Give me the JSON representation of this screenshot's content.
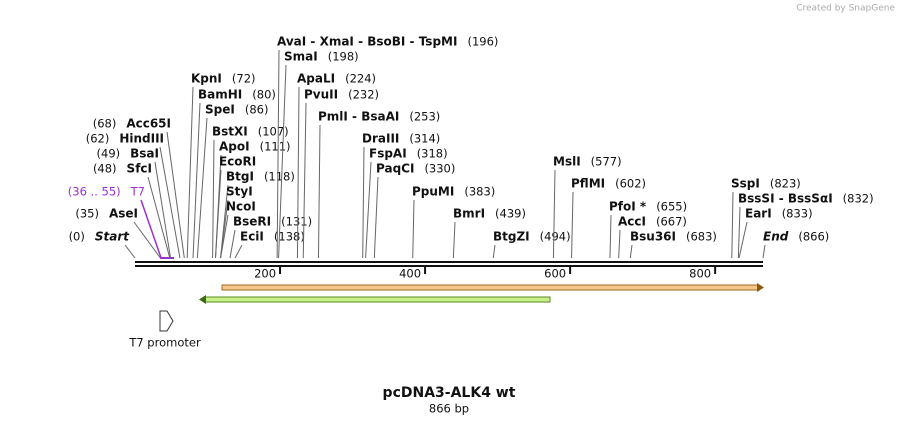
{
  "header": {
    "credit": "Created by SnapGene"
  },
  "map": {
    "title": "pcDNA3-ALK4 wt",
    "length_label": "866 bp",
    "xlim": [
      0,
      866
    ],
    "ticks": [
      200,
      400,
      600,
      800
    ],
    "features": [
      {
        "name": "T7 promoter"
      }
    ],
    "sites": [
      {
        "name": "Start",
        "pos": 0,
        "pos_label": "(0)"
      },
      {
        "name": "AseI",
        "pos": 35,
        "pos_label": "(35)"
      },
      {
        "name": "T7",
        "pos": 36,
        "pos_label": "(36 .. 55)"
      },
      {
        "name": "SfcI",
        "pos": 48,
        "pos_label": "(48)"
      },
      {
        "name": "BsaI",
        "pos": 49,
        "pos_label": "(49)"
      },
      {
        "name": "HindIII",
        "pos": 62,
        "pos_label": "(62)"
      },
      {
        "name": "Acc65I",
        "pos": 68,
        "pos_label": "(68)"
      },
      {
        "name": "KpnI",
        "pos": 72,
        "pos_label": "(72)"
      },
      {
        "name": "BamHI",
        "pos": 80,
        "pos_label": "(80)"
      },
      {
        "name": "SpeI",
        "pos": 86,
        "pos_label": "(86)"
      },
      {
        "name": "BstXI",
        "pos": 107,
        "pos_label": "(107)"
      },
      {
        "name": "ApoI",
        "pos": 111,
        "pos_label": "(111)"
      },
      {
        "name": "EcoRI",
        "pos": 111
      },
      {
        "name": "BtgI",
        "pos": 118,
        "pos_label": "(118)"
      },
      {
        "name": "StyI",
        "pos": 118
      },
      {
        "name": "NcoI",
        "pos": 118
      },
      {
        "name": "BseRI",
        "pos": 131,
        "pos_label": "(131)"
      },
      {
        "name": "EciI",
        "pos": 138,
        "pos_label": "(138)"
      },
      {
        "name": "AvaI  -  XmaI  -  BsoBI  -  TspMI",
        "pos": 196,
        "pos_label": "(196)"
      },
      {
        "name": "SmaI",
        "pos": 198,
        "pos_label": "(198)"
      },
      {
        "name": "ApaLI",
        "pos": 224,
        "pos_label": "(224)"
      },
      {
        "name": "PvuII",
        "pos": 232,
        "pos_label": "(232)"
      },
      {
        "name": "PmlI  -  BsaAI",
        "pos": 253,
        "pos_label": "(253)"
      },
      {
        "name": "DraIII",
        "pos": 314,
        "pos_label": "(314)"
      },
      {
        "name": "FspAI",
        "pos": 318,
        "pos_label": "(318)"
      },
      {
        "name": "PaqCI",
        "pos": 330,
        "pos_label": "(330)"
      },
      {
        "name": "PpuMI",
        "pos": 383,
        "pos_label": "(383)"
      },
      {
        "name": "BmrI",
        "pos": 439,
        "pos_label": "(439)"
      },
      {
        "name": "BtgZI",
        "pos": 494,
        "pos_label": "(494)"
      },
      {
        "name": "MslI",
        "pos": 577,
        "pos_label": "(577)"
      },
      {
        "name": "PflMI",
        "pos": 602,
        "pos_label": "(602)"
      },
      {
        "name": "PfoI *",
        "pos": 655,
        "pos_label": "(655)"
      },
      {
        "name": "AccI",
        "pos": 667,
        "pos_label": "(667)"
      },
      {
        "name": "Bsu36I",
        "pos": 683,
        "pos_label": "(683)"
      },
      {
        "name": "SspI",
        "pos": 823,
        "pos_label": "(823)"
      },
      {
        "name": "BssSI  -  BssSαI",
        "pos": 832,
        "pos_label": "(832)"
      },
      {
        "name": "EarI",
        "pos": 833,
        "pos_label": "(833)"
      },
      {
        "name": "End",
        "pos": 866,
        "pos_label": "(866)"
      }
    ]
  }
}
